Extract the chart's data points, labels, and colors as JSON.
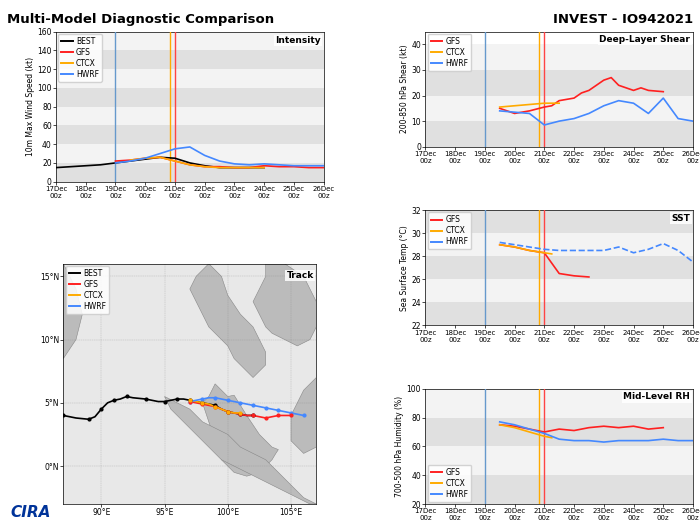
{
  "title_left": "Multi-Model Diagnostic Comparison",
  "title_right": "INVEST - IO942021",
  "vline_blue_x": 19.0,
  "vline_orange_x": 20.833,
  "vline_red_x": 21.0,
  "intensity": {
    "title": "Intensity",
    "ylabel": "10m Max Wind Speed (kt)",
    "ylim": [
      0,
      160
    ],
    "yticks": [
      0,
      20,
      40,
      60,
      80,
      100,
      120,
      140,
      160
    ],
    "best_x": [
      17,
      17.5,
      18,
      18.5,
      19,
      19.5,
      20,
      20.5,
      21,
      21.5,
      22,
      22.5,
      23,
      23.5,
      24
    ],
    "best_y": [
      15,
      16,
      17,
      18,
      20,
      22,
      24,
      26,
      25,
      20,
      17,
      15,
      15,
      15,
      15
    ],
    "gfs_x": [
      19,
      19.5,
      20,
      20.5,
      21,
      21.5,
      22,
      22.5,
      23,
      23.5,
      24,
      24.5,
      25,
      25.5,
      26
    ],
    "gfs_y": [
      22,
      23,
      25,
      26,
      22,
      18,
      16,
      16,
      15,
      15,
      17,
      16,
      16,
      15,
      15
    ],
    "ctcx_x": [
      19.5,
      20,
      20.5,
      21,
      21.5,
      22,
      22.5,
      23,
      23.5,
      24
    ],
    "ctcx_y": [
      23,
      25,
      26,
      22,
      18,
      16,
      15,
      15,
      15,
      15
    ],
    "hwrf_x": [
      19,
      19.5,
      20,
      20.5,
      21,
      21.5,
      22,
      22.5,
      23,
      23.5,
      24,
      24.5,
      25,
      25.5,
      26
    ],
    "hwrf_y": [
      20,
      22,
      25,
      30,
      35,
      37,
      28,
      22,
      19,
      18,
      19,
      18,
      17,
      17,
      17
    ]
  },
  "shear": {
    "title": "Deep-Layer Shear",
    "ylabel": "200-850 hPa Shear (kt)",
    "ylim": [
      0,
      45
    ],
    "yticks": [
      0,
      10,
      20,
      30,
      40
    ],
    "gfs_x": [
      19.5,
      20,
      20.25,
      20.5,
      21,
      21.25,
      21.5,
      22,
      22.25,
      22.5,
      23,
      23.25,
      23.5,
      24,
      24.25,
      24.5,
      25
    ],
    "gfs_y": [
      15,
      13,
      13.5,
      14,
      15.5,
      16,
      18,
      19,
      21,
      22,
      26,
      27,
      24,
      22,
      23,
      22,
      21.5
    ],
    "ctcx_x": [
      19.5,
      20,
      20.5,
      21,
      21.5
    ],
    "ctcx_y": [
      15.5,
      16,
      16.5,
      17,
      17
    ],
    "hwrf_x": [
      19.5,
      20,
      20.5,
      21,
      21.5,
      22,
      22.5,
      23,
      23.5,
      24,
      24.5,
      25,
      25.5,
      26
    ],
    "hwrf_y": [
      14,
      13.5,
      13,
      8.5,
      10,
      11,
      13,
      16,
      18,
      17,
      13,
      19,
      11,
      10
    ]
  },
  "sst": {
    "title": "SST",
    "ylabel": "Sea Surface Temp (°C)",
    "ylim": [
      22,
      32
    ],
    "yticks": [
      22,
      24,
      26,
      28,
      30,
      32
    ],
    "gfs_x": [
      19.5,
      20,
      20.5,
      21,
      21.5,
      22,
      22.5
    ],
    "gfs_y": [
      29.0,
      28.8,
      28.5,
      28.3,
      26.5,
      26.3,
      26.2
    ],
    "ctcx_x": [
      19.5,
      20,
      20.5,
      21,
      21.25
    ],
    "ctcx_y": [
      29.0,
      28.8,
      28.5,
      28.3,
      28.2
    ],
    "hwrf_x": [
      19.5,
      20,
      20.5,
      21,
      21.5,
      22,
      22.5,
      23,
      23.5,
      24,
      24.5,
      25,
      25.5,
      26
    ],
    "hwrf_y": [
      29.2,
      29.0,
      28.8,
      28.6,
      28.5,
      28.5,
      28.5,
      28.5,
      28.8,
      28.3,
      28.6,
      29.1,
      28.5,
      27.5
    ]
  },
  "rh": {
    "title": "Mid-Level RH",
    "ylabel": "700-500 hPa Humidity (%)",
    "ylim": [
      20,
      100
    ],
    "yticks": [
      20,
      40,
      60,
      80,
      100
    ],
    "gfs_x": [
      19.5,
      20,
      20.5,
      21,
      21.5,
      22,
      22.5,
      23,
      23.5,
      24,
      24.5,
      25
    ],
    "gfs_y": [
      75,
      74,
      72,
      70,
      72,
      71,
      73,
      74,
      73,
      74,
      72,
      73
    ],
    "ctcx_x": [
      19.5,
      20,
      20.5,
      21,
      21.25
    ],
    "ctcx_y": [
      75,
      73,
      70,
      67,
      66
    ],
    "hwrf_x": [
      19.5,
      20,
      20.5,
      21,
      21.5,
      22,
      22.5,
      23,
      23.5,
      24,
      24.5,
      25,
      25.5,
      26
    ],
    "hwrf_y": [
      77,
      75,
      72,
      69,
      65,
      64,
      64,
      63,
      64,
      64,
      64,
      65,
      64,
      64
    ]
  },
  "track": {
    "lon_min": 87,
    "lon_max": 107,
    "lat_min": -3,
    "lat_max": 16,
    "lat_ticks": [
      0,
      5,
      10,
      15
    ],
    "lon_ticks": [
      90,
      95,
      100,
      105
    ],
    "best_lon": [
      85,
      86,
      87,
      88,
      89,
      89.5,
      90,
      90.5,
      91,
      91.5,
      92,
      92.5,
      93.5,
      94.5,
      95,
      95.5,
      96,
      96.5,
      97,
      97.5,
      98,
      98.5,
      99,
      99.5,
      100,
      100.5,
      101,
      101.5,
      102
    ],
    "best_lat": [
      4.5,
      4.2,
      4.0,
      3.8,
      3.7,
      3.9,
      4.5,
      5.0,
      5.2,
      5.3,
      5.5,
      5.4,
      5.3,
      5.1,
      5.1,
      5.2,
      5.3,
      5.3,
      5.2,
      5.1,
      5.0,
      4.9,
      4.8,
      4.5,
      4.3,
      4.2,
      4.1,
      4.0,
      4.0
    ],
    "gfs_lon": [
      97,
      97.5,
      98,
      98.5,
      99,
      99.5,
      100,
      100.5,
      101,
      101.5,
      102,
      102.5,
      103,
      103.5,
      104,
      104.5,
      105
    ],
    "gfs_lat": [
      5.1,
      5.0,
      4.9,
      4.8,
      4.7,
      4.5,
      4.3,
      4.2,
      4.1,
      4.0,
      4.0,
      3.9,
      3.8,
      3.9,
      4.0,
      4.0,
      4.0
    ],
    "ctcx_lon": [
      97,
      97.5,
      98,
      98.5,
      99,
      99.5,
      100,
      100.5,
      101
    ],
    "ctcx_lat": [
      5.2,
      5.1,
      5.0,
      4.9,
      4.7,
      4.5,
      4.3,
      4.2,
      4.2
    ],
    "hwrf_lon": [
      97,
      97.5,
      98,
      98.5,
      99,
      99.5,
      100,
      100.5,
      101,
      101.5,
      102,
      102.5,
      103,
      103.5,
      104,
      104.5,
      105,
      105.5,
      106
    ],
    "hwrf_lat": [
      5.1,
      5.2,
      5.3,
      5.4,
      5.4,
      5.3,
      5.2,
      5.1,
      5.0,
      4.9,
      4.8,
      4.7,
      4.6,
      4.5,
      4.4,
      4.3,
      4.2,
      4.1,
      4.0
    ],
    "land_polygons": [
      [
        [
          96,
          16
        ],
        [
          107,
          16
        ],
        [
          107,
          10
        ],
        [
          105,
          8
        ],
        [
          104,
          6
        ],
        [
          103,
          4
        ],
        [
          102,
          2
        ],
        [
          101,
          1
        ],
        [
          100,
          2
        ],
        [
          99,
          4
        ],
        [
          98,
          5
        ],
        [
          97,
          6
        ],
        [
          96,
          8
        ],
        [
          95,
          10
        ],
        [
          94,
          12
        ],
        [
          93,
          14
        ],
        [
          92,
          16
        ]
      ],
      [
        [
          87,
          14
        ],
        [
          90,
          16
        ],
        [
          92,
          16
        ],
        [
          91,
          14
        ],
        [
          90,
          12
        ],
        [
          89,
          11
        ],
        [
          88,
          12
        ],
        [
          87,
          14
        ]
      ],
      [
        [
          107,
          3
        ],
        [
          107,
          -3
        ],
        [
          100,
          -3
        ],
        [
          100,
          0
        ],
        [
          102,
          1
        ],
        [
          104,
          2
        ],
        [
          105,
          3
        ],
        [
          107,
          3
        ]
      ],
      [
        [
          87,
          -3
        ],
        [
          95,
          -3
        ],
        [
          95,
          0
        ],
        [
          93,
          1
        ],
        [
          91,
          0
        ],
        [
          89,
          -1
        ],
        [
          87,
          0
        ],
        [
          87,
          -3
        ]
      ]
    ]
  },
  "colors": {
    "best": "#000000",
    "gfs": "#ff2020",
    "ctcx": "#ffaa00",
    "hwrf": "#4488ff",
    "vline_blue": "#6699cc",
    "vline_orange": "#ffaa00",
    "vline_red": "#ff4444",
    "land": "#bbbbbb",
    "ocean": "#e8e8e8",
    "stripe_dark": "#cccccc",
    "stripe_light": "#ebebeb"
  },
  "x_tick_labels": [
    "17Dec\n00z",
    "18Dec\n00z",
    "19Dec\n00z",
    "20Dec\n00z",
    "21Dec\n00z",
    "22Dec\n00z",
    "23Dec\n00z",
    "24Dec\n00z",
    "25Dec\n00z",
    "26Dec\n00z"
  ],
  "x_tick_positions": [
    17,
    18,
    19,
    20,
    21,
    22,
    23,
    24,
    25,
    26
  ],
  "xlim": [
    17,
    26
  ],
  "cira_text": "CIRA",
  "cira_color": "#003399"
}
